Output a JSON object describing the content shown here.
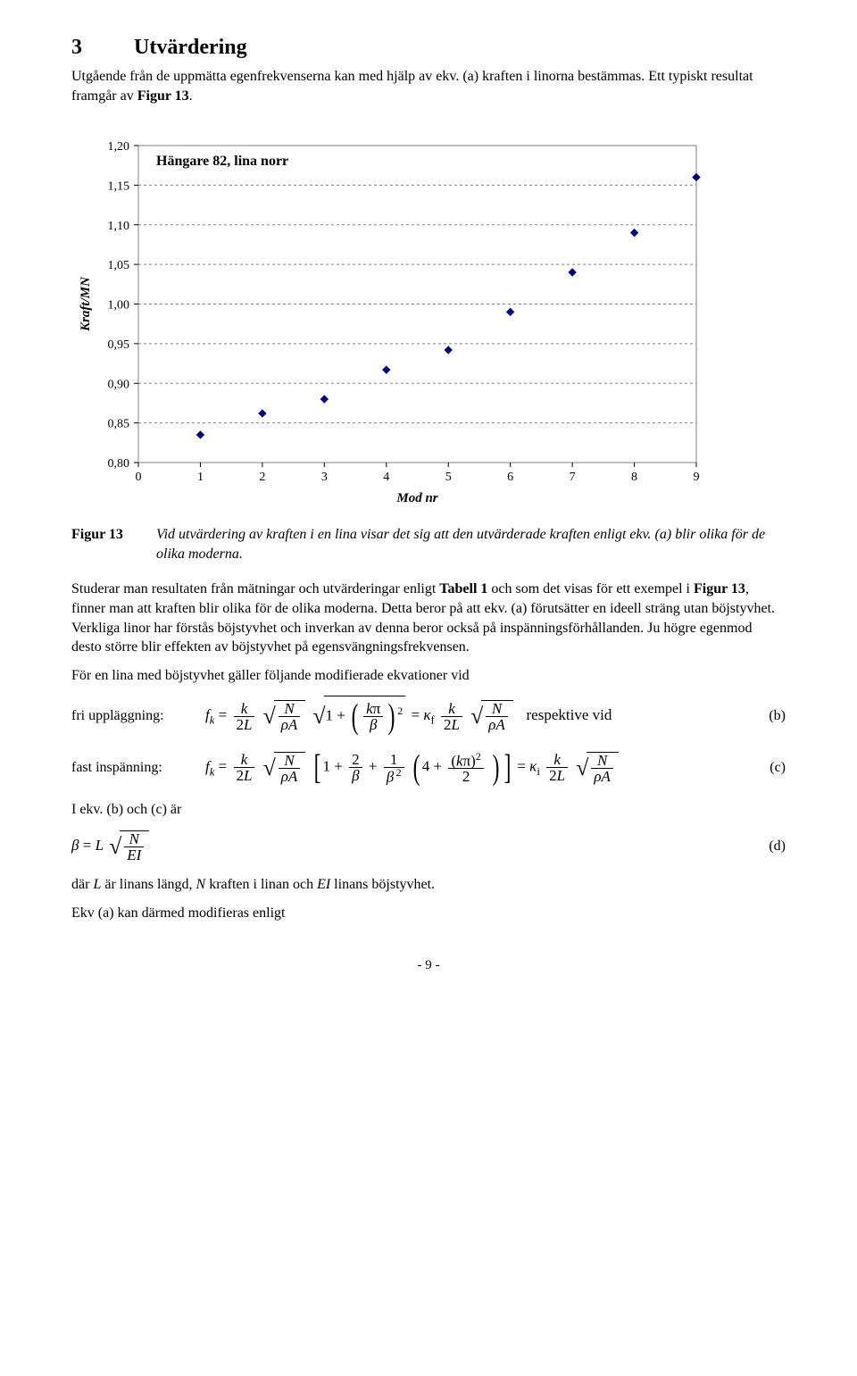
{
  "section": {
    "number": "3",
    "title": "Utvärdering"
  },
  "intro": "Utgående från de uppmätta egenfrekvenserna kan med hjälp av ekv. (a) kraften i linorna bestämmas. Ett typiskt resultat framgår av Figur 13.",
  "chart": {
    "type": "scatter",
    "title": "Hängare 82, lina norr",
    "title_fontsize": 16,
    "title_fontweight": "bold",
    "xlabel": "Mod nr",
    "ylabel": "Kraft/MN",
    "label_fontsize": 15,
    "label_fontstyle": "italic",
    "label_fontweight": "bold",
    "xlim": [
      0,
      9
    ],
    "ylim": [
      0.8,
      1.2
    ],
    "xtick_step": 1,
    "ytick_step": 0.05,
    "ytick_format": "0,00",
    "grid_color": "#808080",
    "grid_dash": "3,3",
    "border_color": "#808080",
    "background_color": "#ffffff",
    "marker_color": "#000080",
    "marker_size": 8,
    "marker_style": "diamond",
    "points": [
      {
        "x": 1,
        "y": 0.835
      },
      {
        "x": 2,
        "y": 0.862
      },
      {
        "x": 3,
        "y": 0.88
      },
      {
        "x": 4,
        "y": 0.917
      },
      {
        "x": 5,
        "y": 0.942
      },
      {
        "x": 6,
        "y": 0.99
      },
      {
        "x": 7,
        "y": 1.04
      },
      {
        "x": 8,
        "y": 1.09
      },
      {
        "x": 9,
        "y": 1.16
      }
    ]
  },
  "figcap": {
    "label": "Figur 13",
    "text": "Vid utvärdering av kraften i en lina visar det sig att den utvärderade kraften enligt ekv. (a) blir olika för de olika moderna."
  },
  "body1": "Studerar man resultaten från mätningar och utvärderingar enligt Tabell 1 och som det visas för ett exempel i Figur 13, finner man att kraften blir olika för de olika moderna. Detta beror på att ekv. (a) förutsätter en ideell sträng utan böjstyvhet. Verkliga linor har förstås böjstyvhet och inverkan av denna beror också på inspänningsförhållanden. Ju högre egenmod desto större blir effekten av böjstyvhet på egensvängningsfrekvensen.",
  "body2": "För en lina med böjstyvhet gäller följande modifierade ekvationer vid",
  "eq_b": {
    "lead": "fri uppläggning:",
    "tail": "respektive vid",
    "tag": "(b)"
  },
  "eq_c": {
    "lead": "fast inspänning:",
    "tag": "(c)"
  },
  "eq_note": "I ekv. (b) och (c) är",
  "eq_d": {
    "tag": "(d)"
  },
  "tail1": "där L är linans längd, N kraften i linan och EI linans böjstyvhet.",
  "tail2": "Ekv (a) kan därmed modifieras enligt",
  "page_number": "- 9 -"
}
